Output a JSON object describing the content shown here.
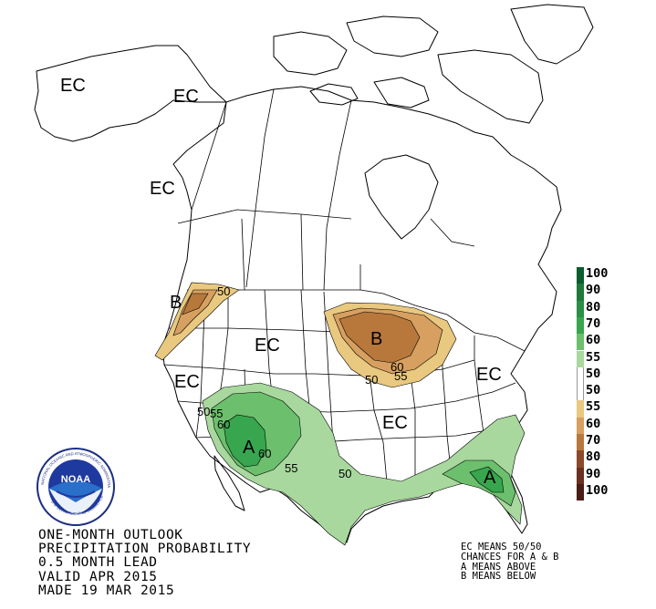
{
  "title_lines": [
    "ONE-MONTH OUTLOOK",
    "PRECIPITATION PROBABILITY",
    "0.5 MONTH LEAD",
    "VALID APR 2015",
    "MADE 19 MAR 2015"
  ],
  "note_lines": [
    "EC MEANS 50/50",
    "CHANCES FOR A & B",
    "A MEANS ABOVE",
    "B MEANS BELOW"
  ],
  "legend": [
    {
      "label": "100",
      "color": "#0a5d2c"
    },
    {
      "label": "90",
      "color": "#1f7a3a"
    },
    {
      "label": "80",
      "color": "#2c8f47"
    },
    {
      "label": "70",
      "color": "#37a64e"
    },
    {
      "label": "60",
      "color": "#6cc06d"
    },
    {
      "label": "55",
      "color": "#a8d89e"
    },
    {
      "label": "50",
      "color": "#ffffff"
    },
    {
      "label": "50",
      "color": "#ffffff"
    },
    {
      "label": "55",
      "color": "#e9c87f"
    },
    {
      "label": "60",
      "color": "#d7a060"
    },
    {
      "label": "70",
      "color": "#b8783c"
    },
    {
      "label": "80",
      "color": "#8c4a2a"
    },
    {
      "label": "90",
      "color": "#6a3020"
    },
    {
      "label": "100",
      "color": "#4a1e16"
    }
  ],
  "region_labels": {
    "ec_alaska_west": "EC",
    "ec_alaska_east": "EC",
    "ec_bc": "EC",
    "b_northwest": "B",
    "ec_montana": "EC",
    "b_great_lakes": "B",
    "ec_california": "EC",
    "ec_midwest": "EC",
    "ec_northeast": "EC",
    "a_southwest": "A",
    "a_florida": "A"
  },
  "contour_labels": {
    "c50_nw": "50",
    "c50_gl_a": "50",
    "c55_gl": "55",
    "c60_gl": "60",
    "c50_sw": "50",
    "c55_sw_a": "55",
    "c60_sw_a": "60",
    "c60_sw_b": "60",
    "c55_sw_b": "55",
    "c50_tx": "50"
  },
  "logo_text": "NOAA",
  "logo_ring_text": "NATIONAL OCEANIC AND ATMOSPHERIC ADMINISTRATION",
  "logo_ring_text_bottom": "U.S. DEPARTMENT OF COMMERCE",
  "colors": {
    "above_light": "#a8d89e",
    "above_mid": "#6cc06d",
    "above_dark": "#37a64e",
    "below_light": "#e9c87f",
    "below_mid": "#d7a060",
    "below_dark": "#b8783c"
  }
}
